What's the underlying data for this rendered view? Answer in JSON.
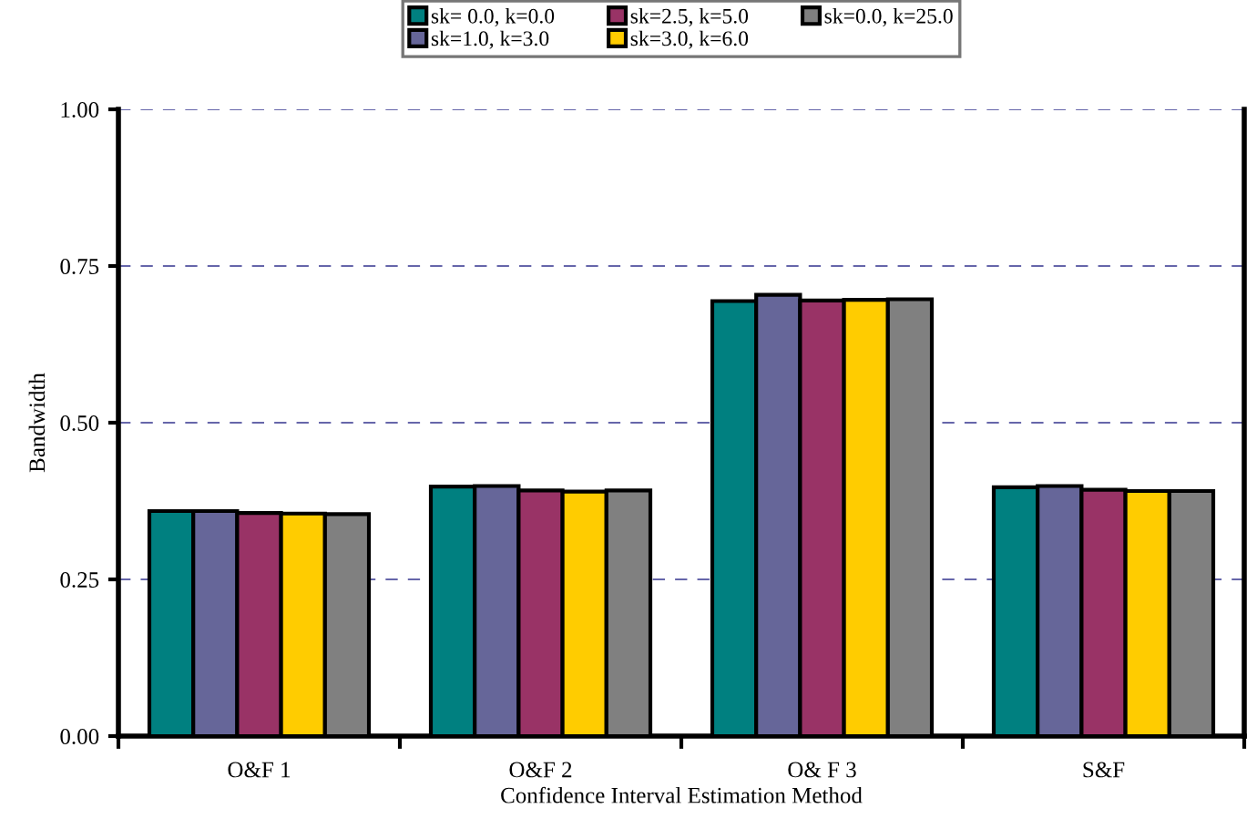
{
  "chart_data": {
    "type": "bar",
    "xlabel": "Confidence Interval Estimation Method",
    "ylabel": "Bandwidth",
    "categories": [
      "O&F 1",
      "O&F 2",
      "O& F 3",
      "S&F"
    ],
    "series": [
      {
        "name": "sk= 0.0, k=0.0",
        "color": "#008080",
        "values": [
          0.359,
          0.398,
          0.694,
          0.397
        ]
      },
      {
        "name": "sk=1.0, k=3.0",
        "color": "#666699",
        "values": [
          0.359,
          0.399,
          0.704,
          0.399
        ]
      },
      {
        "name": "sk=2.5, k=5.0",
        "color": "#993366",
        "values": [
          0.356,
          0.392,
          0.695,
          0.393
        ]
      },
      {
        "name": "sk=3.0, k=6.0",
        "color": "#ffcc00",
        "values": [
          0.355,
          0.39,
          0.696,
          0.391
        ]
      },
      {
        "name": "sk=0.0, k=25.0",
        "color": "#808080",
        "values": [
          0.354,
          0.392,
          0.697,
          0.391
        ]
      }
    ],
    "ylim": [
      0,
      1
    ],
    "yticks": [
      {
        "value": 0,
        "label": "0.00"
      },
      {
        "value": 0.25,
        "label": "0.25"
      },
      {
        "value": 0.5,
        "label": "0.50"
      },
      {
        "value": 0.75,
        "label": "0.75"
      },
      {
        "value": 1,
        "label": "1.00"
      }
    ],
    "grid": "y",
    "legend": "top"
  }
}
